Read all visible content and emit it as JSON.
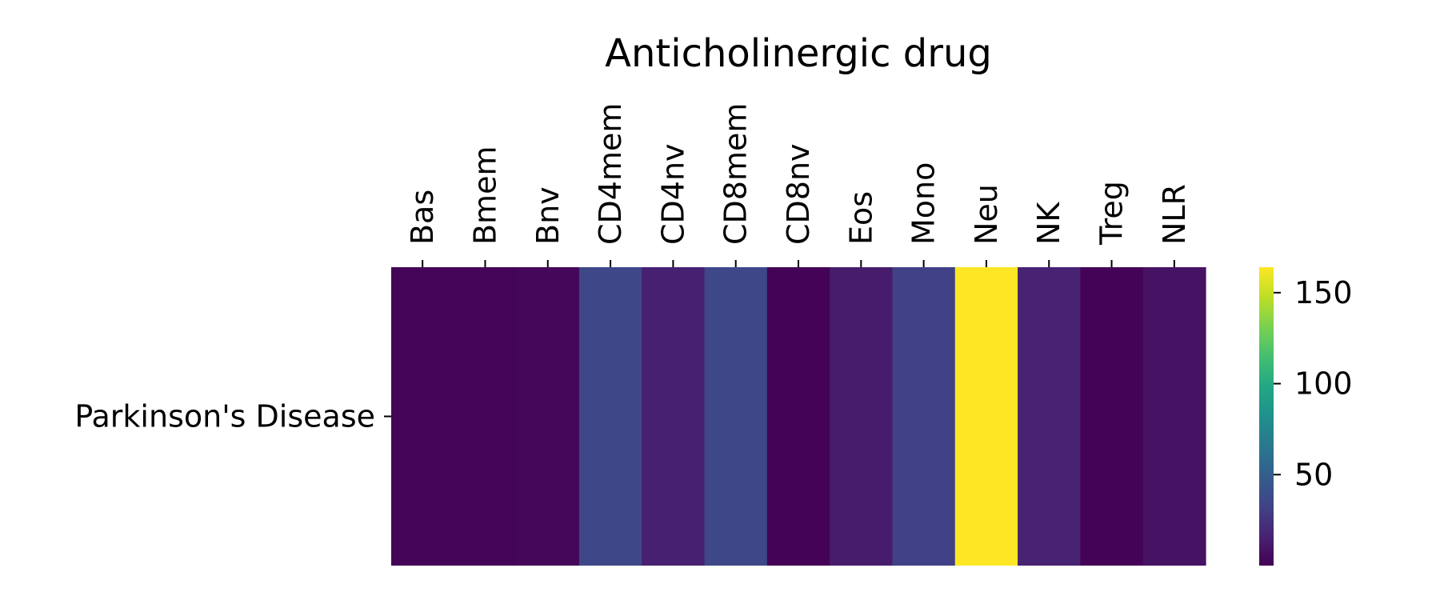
{
  "chart_data": {
    "type": "heatmap",
    "title": "Anticholinergic drug",
    "xlabel": "",
    "ylabel": "",
    "x_categories": [
      "Bas",
      "Bmem",
      "Bnv",
      "CD4mem",
      "CD4nv",
      "CD8mem",
      "CD8nv",
      "Eos",
      "Mono",
      "Neu",
      "NK",
      "Treg",
      "NLR"
    ],
    "y_categories": [
      "Parkinson's Disease"
    ],
    "values": [
      [
        2,
        2,
        3,
        35,
        15,
        35,
        1,
        13,
        32,
        164,
        16,
        1,
        8
      ]
    ],
    "colormap": "viridis",
    "colorbar": {
      "range": [
        0,
        164
      ],
      "ticks": [
        50,
        100,
        150
      ],
      "tick_labels": [
        "50",
        "100",
        "150"
      ]
    },
    "grid": false,
    "legend": "none"
  }
}
